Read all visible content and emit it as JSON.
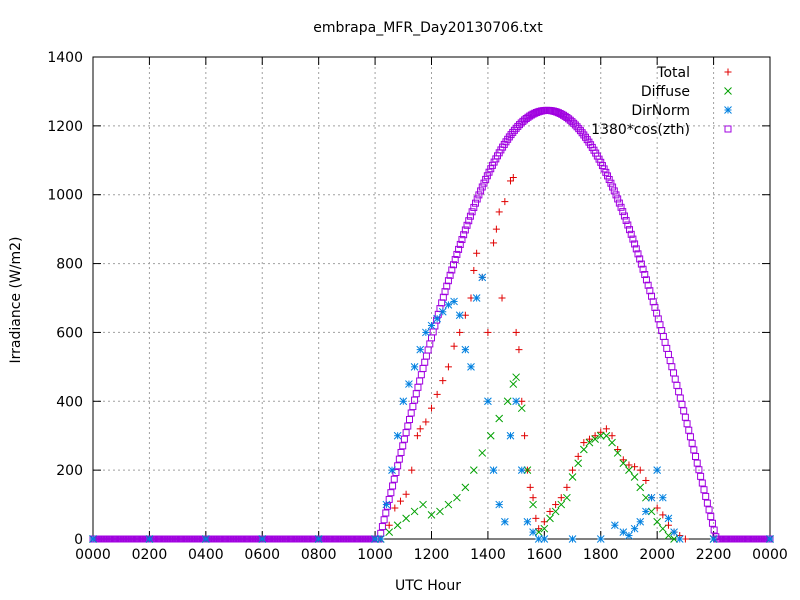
{
  "chart_data": {
    "type": "scatter",
    "title": "embrapa_MFR_Day20130706.txt",
    "xlabel": "UTC Hour",
    "ylabel": "Irradiance (W/m2)",
    "xlim": [
      0,
      24
    ],
    "ylim": [
      0,
      1400
    ],
    "grid": true,
    "legend_position": "top-right",
    "x_ticks": [
      {
        "value": 0,
        "label": "0000"
      },
      {
        "value": 2,
        "label": "0200"
      },
      {
        "value": 4,
        "label": "0400"
      },
      {
        "value": 6,
        "label": "0600"
      },
      {
        "value": 8,
        "label": "0800"
      },
      {
        "value": 10,
        "label": "1000"
      },
      {
        "value": 12,
        "label": "1200"
      },
      {
        "value": 14,
        "label": "1400"
      },
      {
        "value": 16,
        "label": "1600"
      },
      {
        "value": 18,
        "label": "1800"
      },
      {
        "value": 20,
        "label": "2000"
      },
      {
        "value": 22,
        "label": "2200"
      },
      {
        "value": 24,
        "label": "0000"
      }
    ],
    "y_ticks": [
      0,
      200,
      400,
      600,
      800,
      1000,
      1200,
      1400
    ],
    "series": [
      {
        "name": "Total",
        "marker": "plus",
        "color": "#e00000",
        "points": [
          [
            0,
            0
          ],
          [
            2,
            0
          ],
          [
            4,
            0
          ],
          [
            6,
            0
          ],
          [
            8,
            0
          ],
          [
            10,
            0
          ],
          [
            10.2,
            0
          ],
          [
            10.5,
            40
          ],
          [
            10.7,
            90
          ],
          [
            10.9,
            110
          ],
          [
            11.1,
            130
          ],
          [
            11.3,
            200
          ],
          [
            11.5,
            300
          ],
          [
            11.6,
            320
          ],
          [
            11.8,
            340
          ],
          [
            12.0,
            380
          ],
          [
            12.2,
            420
          ],
          [
            12.4,
            460
          ],
          [
            12.6,
            500
          ],
          [
            12.8,
            560
          ],
          [
            13.0,
            600
          ],
          [
            13.2,
            650
          ],
          [
            13.4,
            700
          ],
          [
            13.5,
            780
          ],
          [
            13.6,
            830
          ],
          [
            13.8,
            760
          ],
          [
            14.0,
            600
          ],
          [
            14.2,
            860
          ],
          [
            14.3,
            900
          ],
          [
            14.4,
            950
          ],
          [
            14.5,
            700
          ],
          [
            14.6,
            980
          ],
          [
            14.8,
            1040
          ],
          [
            14.9,
            1050
          ],
          [
            15.0,
            600
          ],
          [
            15.1,
            550
          ],
          [
            15.2,
            400
          ],
          [
            15.3,
            300
          ],
          [
            15.4,
            200
          ],
          [
            15.5,
            150
          ],
          [
            15.6,
            120
          ],
          [
            15.7,
            60
          ],
          [
            15.8,
            30
          ],
          [
            16.0,
            50
          ],
          [
            16.2,
            80
          ],
          [
            16.4,
            100
          ],
          [
            16.6,
            120
          ],
          [
            16.8,
            150
          ],
          [
            17.0,
            200
          ],
          [
            17.2,
            240
          ],
          [
            17.4,
            280
          ],
          [
            17.6,
            290
          ],
          [
            17.8,
            300
          ],
          [
            18.0,
            310
          ],
          [
            18.2,
            320
          ],
          [
            18.4,
            300
          ],
          [
            18.6,
            260
          ],
          [
            18.8,
            230
          ],
          [
            19.0,
            215
          ],
          [
            19.2,
            210
          ],
          [
            19.4,
            200
          ],
          [
            19.6,
            170
          ],
          [
            19.8,
            120
          ],
          [
            20.0,
            90
          ],
          [
            20.2,
            70
          ],
          [
            20.4,
            40
          ],
          [
            20.6,
            20
          ],
          [
            20.8,
            10
          ],
          [
            21.0,
            0
          ],
          [
            22,
            0
          ],
          [
            24,
            0
          ]
        ]
      },
      {
        "name": "Diffuse",
        "marker": "cross",
        "color": "#00a000",
        "points": [
          [
            0,
            0
          ],
          [
            2,
            0
          ],
          [
            4,
            0
          ],
          [
            6,
            0
          ],
          [
            8,
            0
          ],
          [
            10,
            0
          ],
          [
            10.2,
            0
          ],
          [
            10.5,
            20
          ],
          [
            10.8,
            40
          ],
          [
            11.1,
            60
          ],
          [
            11.4,
            80
          ],
          [
            11.7,
            100
          ],
          [
            12.0,
            70
          ],
          [
            12.3,
            80
          ],
          [
            12.6,
            100
          ],
          [
            12.9,
            120
          ],
          [
            13.2,
            150
          ],
          [
            13.5,
            200
          ],
          [
            13.8,
            250
          ],
          [
            14.1,
            300
          ],
          [
            14.4,
            350
          ],
          [
            14.7,
            400
          ],
          [
            14.9,
            450
          ],
          [
            15.0,
            470
          ],
          [
            15.2,
            380
          ],
          [
            15.4,
            200
          ],
          [
            15.6,
            100
          ],
          [
            15.8,
            20
          ],
          [
            16.0,
            30
          ],
          [
            16.2,
            60
          ],
          [
            16.4,
            80
          ],
          [
            16.6,
            100
          ],
          [
            16.8,
            120
          ],
          [
            17.0,
            180
          ],
          [
            17.2,
            220
          ],
          [
            17.4,
            260
          ],
          [
            17.6,
            280
          ],
          [
            17.8,
            290
          ],
          [
            18.0,
            300
          ],
          [
            18.2,
            300
          ],
          [
            18.4,
            280
          ],
          [
            18.6,
            250
          ],
          [
            18.8,
            220
          ],
          [
            19.0,
            200
          ],
          [
            19.2,
            180
          ],
          [
            19.4,
            150
          ],
          [
            19.6,
            120
          ],
          [
            19.8,
            80
          ],
          [
            20.0,
            50
          ],
          [
            20.2,
            30
          ],
          [
            20.4,
            10
          ],
          [
            20.6,
            0
          ],
          [
            22,
            0
          ],
          [
            24,
            0
          ]
        ]
      },
      {
        "name": "DirNorm",
        "marker": "star",
        "color": "#0080e0",
        "points": [
          [
            0,
            0
          ],
          [
            2,
            0
          ],
          [
            4,
            0
          ],
          [
            6,
            0
          ],
          [
            8,
            0
          ],
          [
            10,
            0
          ],
          [
            10.2,
            0
          ],
          [
            10.4,
            100
          ],
          [
            10.6,
            200
          ],
          [
            10.8,
            300
          ],
          [
            11.0,
            400
          ],
          [
            11.2,
            450
          ],
          [
            11.4,
            500
          ],
          [
            11.6,
            550
          ],
          [
            11.8,
            600
          ],
          [
            12.0,
            620
          ],
          [
            12.2,
            640
          ],
          [
            12.4,
            660
          ],
          [
            12.6,
            680
          ],
          [
            12.8,
            690
          ],
          [
            13.0,
            650
          ],
          [
            13.2,
            550
          ],
          [
            13.4,
            500
          ],
          [
            13.6,
            700
          ],
          [
            13.8,
            760
          ],
          [
            14.0,
            400
          ],
          [
            14.2,
            200
          ],
          [
            14.4,
            100
          ],
          [
            14.6,
            50
          ],
          [
            14.8,
            300
          ],
          [
            15.0,
            400
          ],
          [
            15.2,
            200
          ],
          [
            15.4,
            50
          ],
          [
            15.6,
            20
          ],
          [
            15.8,
            0
          ],
          [
            16.0,
            0
          ],
          [
            17,
            0
          ],
          [
            18,
            0
          ],
          [
            18.5,
            40
          ],
          [
            18.8,
            20
          ],
          [
            19.0,
            10
          ],
          [
            19.2,
            30
          ],
          [
            19.4,
            50
          ],
          [
            19.6,
            80
          ],
          [
            19.8,
            120
          ],
          [
            20.0,
            200
          ],
          [
            20.2,
            120
          ],
          [
            20.4,
            60
          ],
          [
            20.6,
            20
          ],
          [
            20.8,
            0
          ],
          [
            22,
            0
          ],
          [
            24,
            0
          ]
        ]
      },
      {
        "name": "1380*cos(zth)",
        "marker": "square",
        "color": "#a000e0",
        "points": []
      }
    ],
    "solar_curve": {
      "peak_x": 16.1,
      "peak_y": 1245,
      "start_x": 10.15,
      "end_x": 22.1
    }
  }
}
